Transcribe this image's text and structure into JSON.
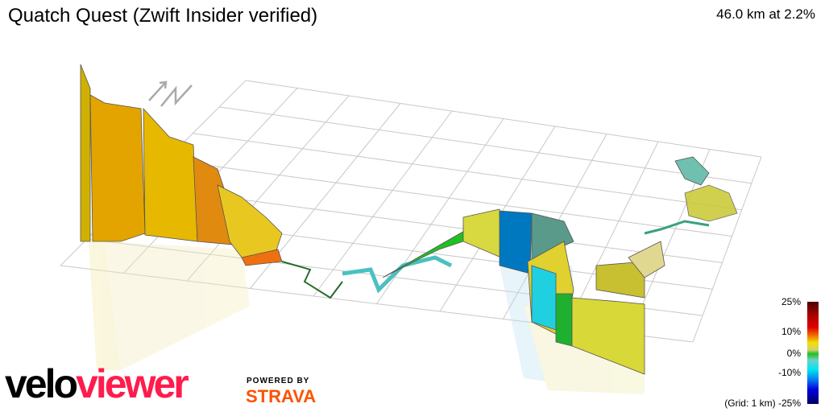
{
  "header": {
    "title": "Quatch Quest (Zwift Insider verified)",
    "summary": "46.0 km at 2.2%"
  },
  "legend": {
    "labels": [
      "25%",
      "10%",
      "0%",
      "-10%",
      "-25%"
    ],
    "grid_note": "(Grid: 1 km)",
    "colors": {
      "max": "#4a0000",
      "high": "#e00000",
      "mid_high": "#f0e000",
      "zero": "#20c020",
      "neg": "#00e8f0",
      "min": "#000060"
    }
  },
  "compass": {
    "icon": "north-arrow-icon",
    "label": "N"
  },
  "branding": {
    "logo_part1": "velo",
    "logo_part2": "viewer",
    "powered_by": "POWERED BY",
    "partner": "STRAVA",
    "logo_color": "#ff1c4c",
    "partner_color": "#fc5200"
  }
}
